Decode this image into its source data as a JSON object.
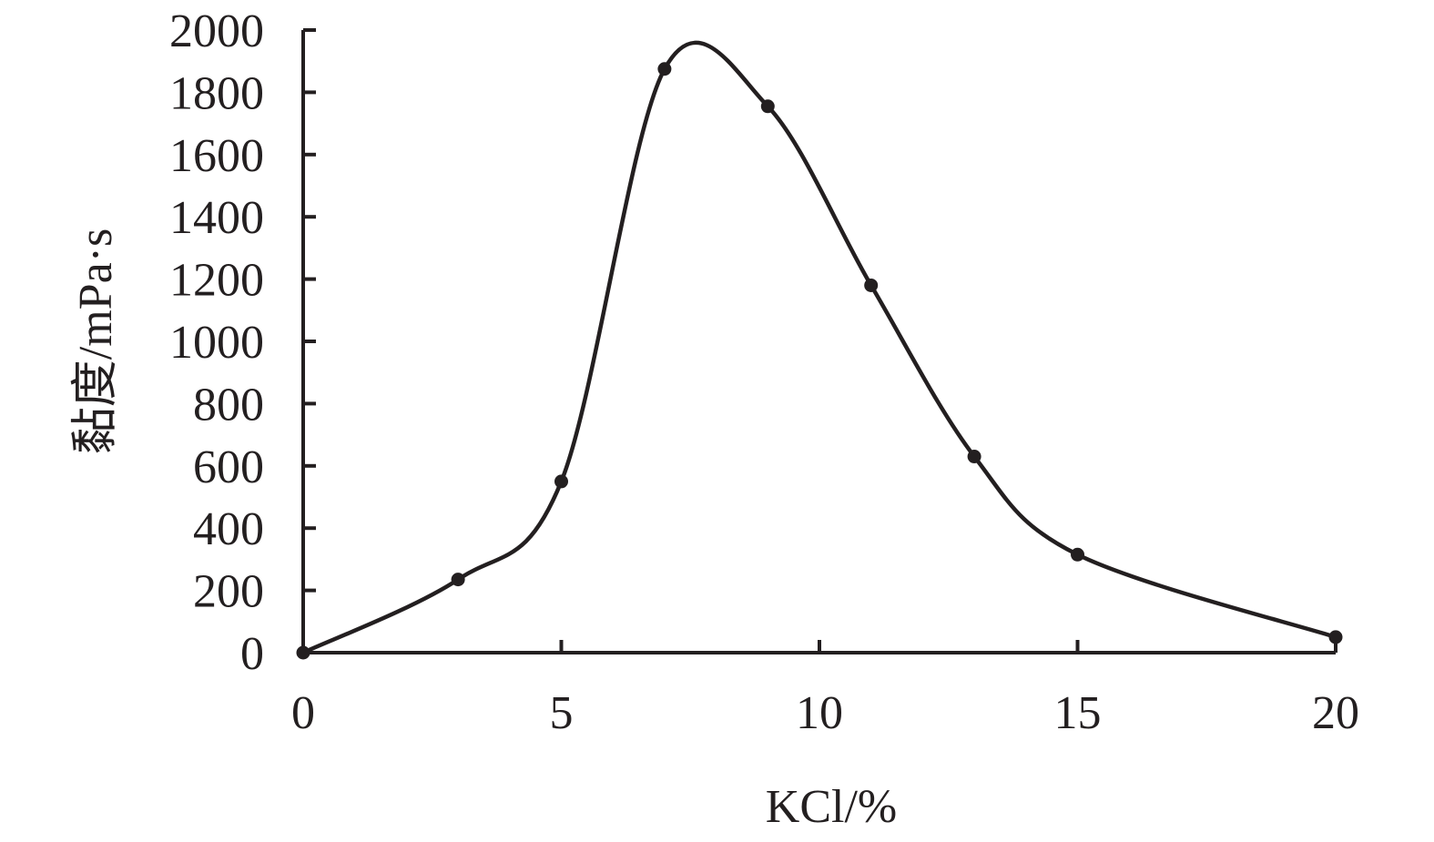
{
  "chart_data": {
    "type": "line",
    "title": "",
    "xlabel": "KCl/%",
    "ylabel": "黏度/mPa·s",
    "xlim": [
      0,
      20
    ],
    "ylim": [
      0,
      2000
    ],
    "xticks": [
      0,
      5,
      10,
      15,
      20
    ],
    "yticks": [
      0,
      200,
      400,
      600,
      800,
      1000,
      1200,
      1400,
      1600,
      1800,
      2000
    ],
    "grid": false,
    "legend": "none",
    "smooth": true,
    "line_color": "#231f20",
    "marker_color": "#231f20",
    "series": [
      {
        "x": [
          0,
          3,
          5,
          7,
          9,
          11,
          13,
          15,
          20
        ],
        "y": [
          0,
          235,
          550,
          1875,
          1755,
          1180,
          630,
          315,
          50
        ]
      }
    ]
  }
}
